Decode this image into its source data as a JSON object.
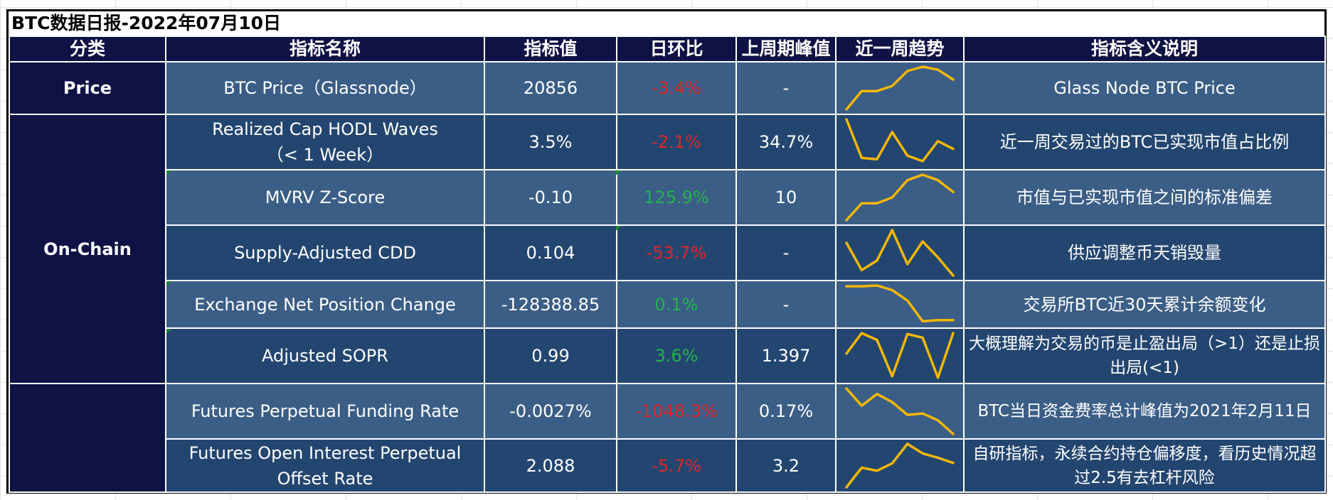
{
  "title": "BTC数据日报-2022年07月10日",
  "headers": [
    "分类",
    "指标名称",
    "指标值",
    "日环比",
    "上周期峰值",
    "近一周趋势",
    "指标含义说明"
  ],
  "categories": {
    "price": "Price",
    "onchain": "On-Chain",
    "derivatives": ""
  },
  "colors": {
    "header_bg": "#0e1244",
    "row_light": "#3b5e86",
    "row_dark": "#234670",
    "negative": "#e02525",
    "positive": "#22b24c",
    "sparkline": "#f2b705"
  },
  "rows": [
    {
      "name": "BTC Price（Glassnode）",
      "value": "20856",
      "change": "-3.4%",
      "change_dir": "neg",
      "peak": "-",
      "desc": "Glass Node BTC Price",
      "trend": [
        0.0,
        0.43,
        0.43,
        0.55,
        0.9,
        1.0,
        0.93,
        0.7
      ]
    },
    {
      "name": "Realized Cap HODL Waves\n（< 1 Week）",
      "value": "3.5%",
      "change": "-2.1%",
      "change_dir": "neg",
      "peak": "34.7%",
      "desc": "近一周交易过的BTC已实现市值占比例",
      "trend": [
        1.0,
        0.15,
        0.12,
        0.72,
        0.2,
        0.08,
        0.52,
        0.35
      ]
    },
    {
      "name": "MVRV Z-Score",
      "value": "-0.10",
      "change": "125.9%",
      "change_dir": "pos",
      "peak": "10",
      "desc": "市值与已实现市值之间的标准偏差",
      "trend": [
        0.0,
        0.37,
        0.37,
        0.5,
        0.88,
        1.0,
        0.88,
        0.62
      ]
    },
    {
      "name": "Supply-Adjusted CDD",
      "value": "0.104",
      "change": "-53.7%",
      "change_dir": "neg",
      "peak": "-",
      "desc": "供应调整币天销毁量",
      "trend": [
        0.72,
        0.12,
        0.33,
        1.0,
        0.25,
        0.75,
        0.4,
        0.0
      ]
    },
    {
      "name": "Exchange Net Position Change",
      "value": "-128388.85",
      "change": "0.1%",
      "change_dir": "pos",
      "peak": "-",
      "desc": "交易所BTC近30天累计余额变化",
      "trend": [
        0.98,
        0.98,
        1.0,
        0.88,
        0.6,
        0.05,
        0.08,
        0.08
      ]
    },
    {
      "name": "Adjusted SOPR",
      "value": "0.99",
      "change": "3.6%",
      "change_dir": "pos",
      "peak": "1.397",
      "desc": "大概理解为交易的币是止盈出局（>1）还是止损出局(<1)",
      "trend": [
        0.55,
        1.0,
        0.85,
        0.05,
        0.98,
        0.9,
        0.02,
        1.0
      ]
    },
    {
      "name": "Futures Perpetual Funding Rate",
      "value": "-0.0027%",
      "change": "-1048.3%",
      "change_dir": "neg",
      "peak": "0.17%",
      "desc": "BTC当日资金费率总计峰值为2021年2月11日",
      "trend": [
        1.0,
        0.62,
        0.88,
        0.7,
        0.42,
        0.45,
        0.3,
        0.0
      ]
    },
    {
      "name": "Futures Open Interest Perpetual Offset Rate",
      "value": "2.088",
      "change": "-5.7%",
      "change_dir": "neg",
      "peak": "3.2",
      "desc": "自研指标，永续合约持仓偏移度，看历史情况超过2.5有去杠杆风险",
      "trend": [
        0.0,
        0.45,
        0.38,
        0.55,
        1.0,
        0.78,
        0.68,
        0.56
      ]
    }
  ]
}
